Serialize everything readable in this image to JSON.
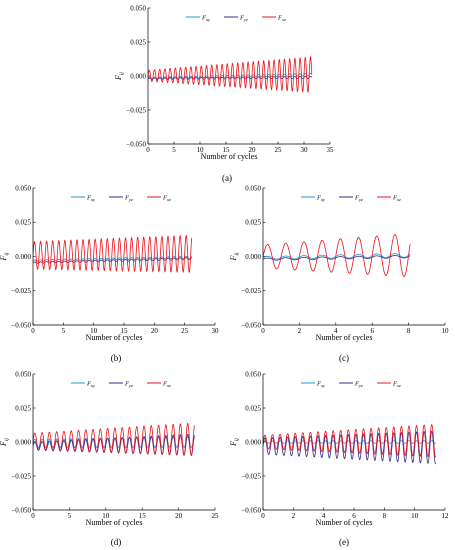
{
  "chart_data": [
    {
      "id": "a",
      "type": "line",
      "panel_label": "(a)",
      "xlabel": "Number of cycles",
      "ylabel": "F",
      "ylabel_sub": "ij",
      "xlim": [
        0,
        35
      ],
      "ylim": [
        -0.05,
        0.05
      ],
      "xticks": [
        0,
        5,
        10,
        15,
        20,
        25,
        30,
        35
      ],
      "yticks": [
        -0.05,
        -0.025,
        0,
        0.025,
        0.05
      ],
      "ytick_labels": [
        "−0.050",
        "−0.025",
        "0.000",
        "0.025",
        "0.050"
      ],
      "legend_position": "top",
      "series": [
        {
          "name": "F",
          "sub": "xy",
          "color": "#1e9bd7",
          "x_max": 31.5,
          "center_start": -0.0015,
          "center_end": 0.001,
          "amp_start": 0.0006,
          "amp_end": 0.0009,
          "period": 1.0,
          "width": 0.8
        },
        {
          "name": "F",
          "sub": "yz",
          "color": "#3b2a8a",
          "x_max": 31.5,
          "center_start": -0.002,
          "center_end": -0.001,
          "amp_start": 0.0005,
          "amp_end": 0.0008,
          "period": 1.0,
          "width": 0.8
        },
        {
          "name": "F",
          "sub": "xz",
          "color": "#e8141b",
          "x_max": 31.5,
          "center_start": 0.0002,
          "center_end": 0.001,
          "amp_start": 0.004,
          "amp_end": 0.013,
          "period": 1.0,
          "width": 0.8
        }
      ]
    },
    {
      "id": "b",
      "type": "line",
      "panel_label": "(b)",
      "xlabel": "Number of cycles",
      "ylabel": "F",
      "ylabel_sub": "ij",
      "xlim": [
        0,
        30
      ],
      "ylim": [
        -0.05,
        0.05
      ],
      "xticks": [
        0,
        5,
        10,
        15,
        20,
        25,
        30
      ],
      "yticks": [
        -0.05,
        -0.025,
        0,
        0.025,
        0.05
      ],
      "ytick_labels": [
        "−0.050",
        "−0.025",
        "0.000",
        "0.025",
        "0.050"
      ],
      "legend_position": "top",
      "series": [
        {
          "name": "F",
          "sub": "xy",
          "color": "#1e9bd7",
          "x_max": 26.2,
          "center_start": -0.003,
          "center_end": -0.0005,
          "amp_start": 0.0005,
          "amp_end": 0.0008,
          "period": 1.0,
          "width": 0.8
        },
        {
          "name": "F",
          "sub": "yz",
          "color": "#3b2a8a",
          "x_max": 26.2,
          "center_start": -0.0045,
          "center_end": -0.0015,
          "amp_start": 0.0005,
          "amp_end": 0.0008,
          "period": 1.0,
          "width": 0.8
        },
        {
          "name": "F",
          "sub": "xz",
          "color": "#e8141b",
          "x_max": 26.2,
          "center_start": 0.0008,
          "center_end": 0.002,
          "amp_start": 0.01,
          "amp_end": 0.0135,
          "period": 1.0,
          "width": 0.8
        }
      ]
    },
    {
      "id": "c",
      "type": "line",
      "panel_label": "(c)",
      "xlabel": "Number of cycles",
      "ylabel": "F",
      "ylabel_sub": "ij",
      "xlim": [
        0,
        10
      ],
      "ylim": [
        -0.05,
        0.05
      ],
      "xticks": [
        0,
        2,
        4,
        6,
        8,
        10
      ],
      "yticks": [
        -0.05,
        -0.025,
        0,
        0.025,
        0.05
      ],
      "ytick_labels": [
        "−0.050",
        "−0.025",
        "0.000",
        "0.025",
        "0.050"
      ],
      "legend_position": "top",
      "series": [
        {
          "name": "F",
          "sub": "xy",
          "color": "#1e9bd7",
          "x_max": 8.1,
          "center_start": -0.001,
          "center_end": 0.001,
          "amp_start": 0.001,
          "amp_end": 0.0015,
          "period": 1.0,
          "width": 0.8
        },
        {
          "name": "F",
          "sub": "yz",
          "color": "#3b2a8a",
          "x_max": 8.1,
          "center_start": -0.002,
          "center_end": 0.0,
          "amp_start": 0.0008,
          "amp_end": 0.001,
          "period": 1.0,
          "width": 0.8
        },
        {
          "name": "F",
          "sub": "xz",
          "color": "#e8141b",
          "x_max": 8.1,
          "center_start": 0.0,
          "center_end": 0.001,
          "amp_start": 0.0085,
          "amp_end": 0.016,
          "period": 1.0,
          "width": 0.8
        }
      ]
    },
    {
      "id": "d",
      "type": "line",
      "panel_label": "(d)",
      "xlabel": "Number of cycles",
      "ylabel": "F",
      "ylabel_sub": "ij",
      "xlim": [
        0,
        25
      ],
      "ylim": [
        -0.05,
        0.05
      ],
      "xticks": [
        0,
        5,
        10,
        15,
        20,
        25
      ],
      "yticks": [
        -0.05,
        -0.025,
        0,
        0.025,
        0.05
      ],
      "ytick_labels": [
        "−0.050",
        "−0.025",
        "0.000",
        "0.025",
        "0.050"
      ],
      "legend_position": "top",
      "series": [
        {
          "name": "F",
          "sub": "xy",
          "color": "#1e9bd7",
          "x_max": 22.2,
          "center_start": -0.001,
          "center_end": 0.0,
          "amp_start": 0.003,
          "amp_end": 0.004,
          "period": 1.0,
          "width": 0.8
        },
        {
          "name": "F",
          "sub": "yz",
          "color": "#3b2a8a",
          "x_max": 22.2,
          "center_start": -0.003,
          "center_end": -0.002,
          "amp_start": 0.003,
          "amp_end": 0.008,
          "period": 1.0,
          "width": 0.8
        },
        {
          "name": "F",
          "sub": "xz",
          "color": "#e8141b",
          "x_max": 22.2,
          "center_start": 0.0005,
          "center_end": 0.002,
          "amp_start": 0.006,
          "amp_end": 0.012,
          "period": 1.0,
          "width": 0.8
        }
      ]
    },
    {
      "id": "e",
      "type": "line",
      "panel_label": "(e)",
      "xlabel": "Number of cycles",
      "ylabel": "F",
      "ylabel_sub": "ij",
      "xlim": [
        0,
        12
      ],
      "ylim": [
        -0.05,
        0.05
      ],
      "xticks": [
        0,
        2,
        4,
        6,
        8,
        10,
        12
      ],
      "yticks": [
        -0.05,
        -0.025,
        0,
        0.025,
        0.05
      ],
      "ytick_labels": [
        "−0.050",
        "−0.025",
        "0.000",
        "0.025",
        "0.050"
      ],
      "legend_position": "top",
      "series": [
        {
          "name": "F",
          "sub": "xy",
          "color": "#1e9bd7",
          "x_max": 11.4,
          "center_start": 0.0,
          "center_end": 0.0,
          "amp_start": 0.0008,
          "amp_end": 0.001,
          "period": 0.5,
          "width": 0.8
        },
        {
          "name": "F",
          "sub": "yz",
          "color": "#3b2a8a",
          "x_max": 11.4,
          "center_start": -0.003,
          "center_end": -0.004,
          "amp_start": 0.006,
          "amp_end": 0.012,
          "period": 0.5,
          "width": 0.8
        },
        {
          "name": "F",
          "sub": "xz",
          "color": "#e8141b",
          "x_max": 11.4,
          "center_start": 0.0,
          "center_end": 0.001,
          "amp_start": 0.005,
          "amp_end": 0.012,
          "period": 0.5,
          "width": 0.8
        }
      ]
    }
  ]
}
